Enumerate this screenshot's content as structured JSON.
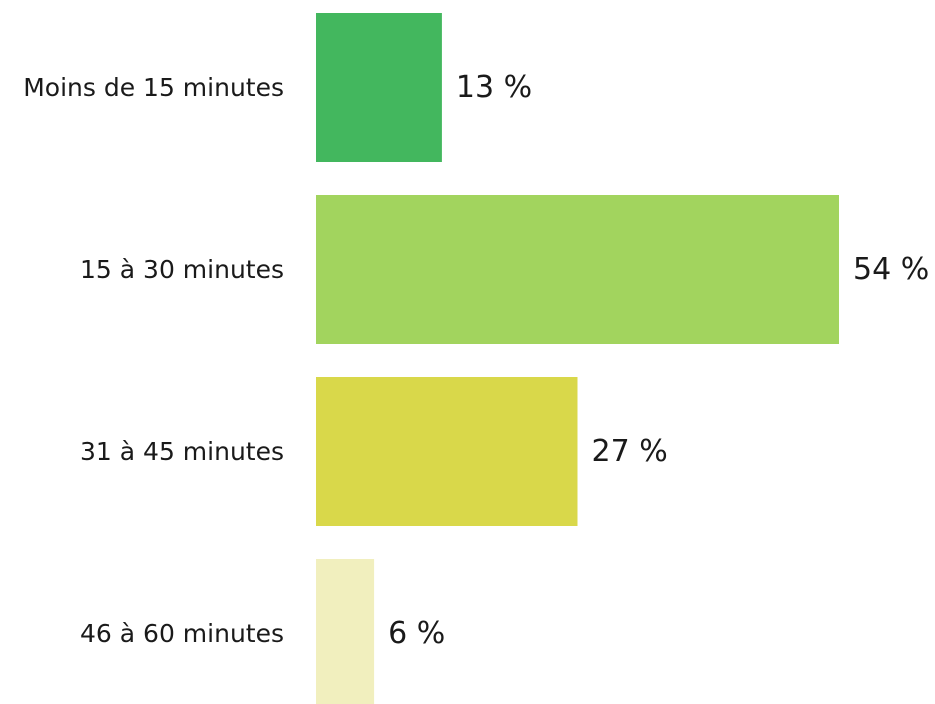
{
  "chart_data": {
    "type": "bar",
    "orientation": "horizontal",
    "categories": [
      "Moins de 15 minutes",
      "15 à 30 minutes",
      "31 à 45 minutes",
      "46 à 60 minutes"
    ],
    "values": [
      13,
      54,
      27,
      6
    ],
    "value_labels": [
      "13 %",
      "54 %",
      "27 %",
      "6 %"
    ],
    "colors": [
      "#43b75e",
      "#a2d45e",
      "#d9d84a",
      "#f1efbe"
    ],
    "title": "",
    "xlabel": "",
    "ylabel": "",
    "xlim": [
      0,
      54
    ],
    "grid": false,
    "legend": "none"
  }
}
